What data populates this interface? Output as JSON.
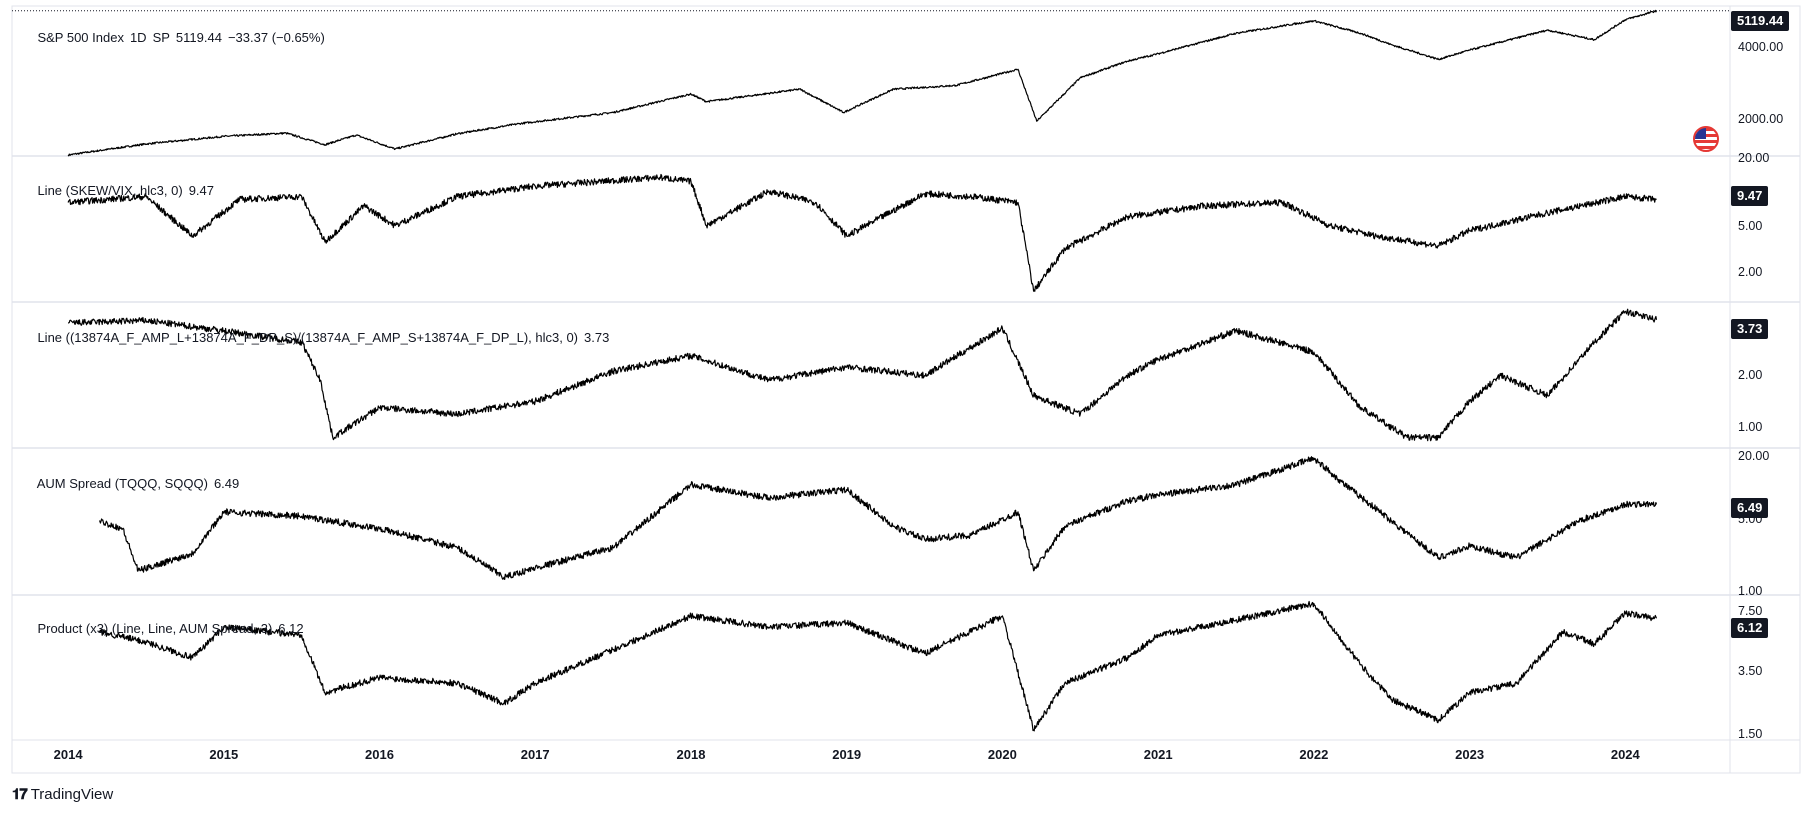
{
  "panes": [
    {
      "id": "spx",
      "title_parts": [
        "S&P 500 Index",
        "1D",
        "SP",
        "5119.44",
        "−33.37 (−0.65%)"
      ],
      "badge": "5119.44",
      "ticks": [
        "4000.00",
        "2000.00"
      ],
      "scale": "log"
    },
    {
      "id": "skew-vix",
      "title_parts": [
        "Line (SKEW/VIX, hlc3, 0)",
        "9.47"
      ],
      "badge": "9.47",
      "ticks": [
        "20.00",
        "5.00",
        "2.00"
      ],
      "scale": "log"
    },
    {
      "id": "amp-dp",
      "title_parts": [
        "Line ((13874A_F_AMP_L+13874A_F_DP_S)/(13874A_F_AMP_S+13874A_F_DP_L), hlc3, 0)",
        "3.73"
      ],
      "badge": "3.73",
      "ticks": [
        "2.00",
        "1.00"
      ],
      "scale": "log"
    },
    {
      "id": "aum-spread",
      "title_parts": [
        "AUM Spread (TQQQ, SQQQ)",
        "6.49"
      ],
      "badge": "6.49",
      "ticks": [
        "20.00",
        "5.00",
        "1.00"
      ],
      "scale": "log"
    },
    {
      "id": "product",
      "title_parts": [
        "Product (x3) (Line, Line, AUM Spread, 3)",
        "6.12"
      ],
      "badge": "6.12",
      "ticks": [
        "7.50",
        "3.50",
        "1.50"
      ],
      "scale": "log"
    }
  ],
  "chart_data": [
    {
      "type": "line",
      "title": "S&P 500 Index, 1D, SP",
      "ylim": [
        1800,
        5300
      ],
      "series": [
        {
          "name": "S&P 500 Index",
          "x": [
            2014.0,
            2014.5,
            2015.0,
            2015.4,
            2015.65,
            2015.85,
            2016.1,
            2016.5,
            2016.9,
            2017.5,
            2018.0,
            2018.1,
            2018.7,
            2018.98,
            2019.3,
            2019.7,
            2020.1,
            2020.22,
            2020.5,
            2020.8,
            2021.0,
            2021.5,
            2022.0,
            2022.3,
            2022.5,
            2022.8,
            2023.0,
            2023.5,
            2023.8,
            2024.0,
            2024.2
          ],
          "values": [
            1800,
            1950,
            2060,
            2110,
            1940,
            2080,
            1880,
            2100,
            2260,
            2450,
            2800,
            2650,
            2900,
            2450,
            2900,
            2980,
            3350,
            2300,
            3150,
            3550,
            3750,
            4350,
            4760,
            4350,
            4000,
            3600,
            3850,
            4450,
            4150,
            4800,
            5119
          ]
        }
      ]
    },
    {
      "type": "line",
      "title": "Line (SKEW/VIX, hlc3, 0)",
      "ylim": [
        1.6,
        20
      ],
      "series": [
        {
          "name": "Line (SKEW/VIX, hlc3, 0)",
          "x": [
            2014.0,
            2014.5,
            2014.8,
            2015.1,
            2015.5,
            2015.65,
            2015.9,
            2016.1,
            2016.5,
            2017.0,
            2017.8,
            2018.0,
            2018.1,
            2018.5,
            2018.8,
            2019.0,
            2019.5,
            2019.8,
            2020.1,
            2020.2,
            2020.4,
            2020.8,
            2021.3,
            2021.8,
            2022.1,
            2022.4,
            2022.8,
            2023.0,
            2023.5,
            2024.0,
            2024.2
          ],
          "values": [
            9,
            10,
            5,
            9.5,
            10,
            4.5,
            8.5,
            6,
            10,
            12,
            14,
            13,
            6,
            11,
            9,
            5,
            10.5,
            10,
            9,
            1.9,
            4,
            7,
            8.5,
            9,
            6,
            5,
            4.2,
            5.5,
            7.5,
            10,
            9.47
          ]
        }
      ]
    },
    {
      "type": "line",
      "title": "Line ((13874A_F_AMP_L+13874A_F_DP_S)/(13874A_F_AMP_S+13874A_F_DP_L), hlc3, 0)",
      "ylim": [
        0.9,
        4.5
      ],
      "series": [
        {
          "name": "Line ((13874A_F_AMP_L+13874A_F_DP_S)/(13874A_F_AMP_S+13874A_F_DP_L), hlc3, 0)",
          "x": [
            2014.0,
            2014.5,
            2015.0,
            2015.5,
            2015.62,
            2015.7,
            2016.0,
            2016.5,
            2017.0,
            2017.5,
            2018.0,
            2018.5,
            2019.0,
            2019.5,
            2020.0,
            2020.2,
            2020.5,
            2020.8,
            2021.0,
            2021.5,
            2022.0,
            2022.3,
            2022.6,
            2022.8,
            2023.0,
            2023.2,
            2023.5,
            2023.8,
            2024.0,
            2024.2
          ],
          "values": [
            3.6,
            3.7,
            3.3,
            2.9,
            1.9,
            1.0,
            1.4,
            1.3,
            1.5,
            2.1,
            2.5,
            1.9,
            2.2,
            2.0,
            3.4,
            1.6,
            1.3,
            2.0,
            2.4,
            3.3,
            2.6,
            1.4,
            1.0,
            1.0,
            1.5,
            2.0,
            1.6,
            2.9,
            4.1,
            3.73
          ]
        }
      ]
    },
    {
      "type": "line",
      "title": "AUM Spread (TQQQ, SQQQ)",
      "ylim": [
        0.9,
        22
      ],
      "series": [
        {
          "name": "AUM Spread (TQQQ, SQQQ)",
          "x": [
            2014.2,
            2014.35,
            2014.45,
            2014.8,
            2015.0,
            2015.5,
            2016.0,
            2016.5,
            2016.8,
            2017.0,
            2017.5,
            2018.0,
            2018.5,
            2019.0,
            2019.3,
            2019.5,
            2019.8,
            2020.1,
            2020.2,
            2020.4,
            2020.8,
            2021.0,
            2021.5,
            2022.0,
            2022.2,
            2022.5,
            2022.8,
            2023.0,
            2023.3,
            2023.7,
            2024.0,
            2024.2
          ],
          "values": [
            4.5,
            3.8,
            1.5,
            2.2,
            5.5,
            5,
            3.8,
            2.5,
            1.3,
            1.6,
            2.5,
            10,
            7.5,
            9,
            4,
            3,
            3.3,
            5.5,
            1.5,
            4,
            7,
            8,
            10,
            18,
            10,
            4.5,
            2,
            2.6,
            2,
            4.5,
            6.5,
            6.49
          ]
        }
      ]
    },
    {
      "type": "line",
      "title": "Product (x3) (Line, Line, AUM Spread, 3)",
      "ylim": [
        1.45,
        8.0
      ],
      "series": [
        {
          "name": "Product (x3) (Line, Line, AUM Spread, 3)",
          "x": [
            2014.2,
            2014.5,
            2014.8,
            2015.0,
            2015.5,
            2015.65,
            2016.0,
            2016.5,
            2016.8,
            2017.0,
            2017.5,
            2018.0,
            2018.5,
            2019.0,
            2019.5,
            2020.0,
            2020.2,
            2020.4,
            2020.8,
            2021.0,
            2021.5,
            2022.0,
            2022.3,
            2022.5,
            2022.8,
            2023.0,
            2023.3,
            2023.6,
            2023.8,
            2024.0,
            2024.2
          ],
          "values": [
            5.2,
            4.6,
            3.8,
            5.5,
            5,
            2.5,
            3,
            2.8,
            2.2,
            2.8,
            4.2,
            6.3,
            5.5,
            5.8,
            4,
            6.3,
            1.6,
            2.8,
            3.8,
            5,
            6,
            7.3,
            3.5,
            2.3,
            1.8,
            2.5,
            2.8,
            5.2,
            4.5,
            6.5,
            6.12
          ]
        }
      ]
    }
  ],
  "x_axis": {
    "labels": [
      "2014",
      "2015",
      "2016",
      "2017",
      "2018",
      "2019",
      "2020",
      "2021",
      "2022",
      "2023",
      "2024"
    ],
    "values": [
      2014,
      2015,
      2016,
      2017,
      2018,
      2019,
      2020,
      2021,
      2022,
      2023,
      2024
    ],
    "range": [
      2013.64,
      2024.64
    ]
  },
  "brand": {
    "name": "TradingView",
    "logo": "tradingview-logo"
  },
  "colors": {
    "line": "#000000",
    "badge": "#131722",
    "grid": "#eef0f3",
    "separator": "#e0e3eb"
  }
}
